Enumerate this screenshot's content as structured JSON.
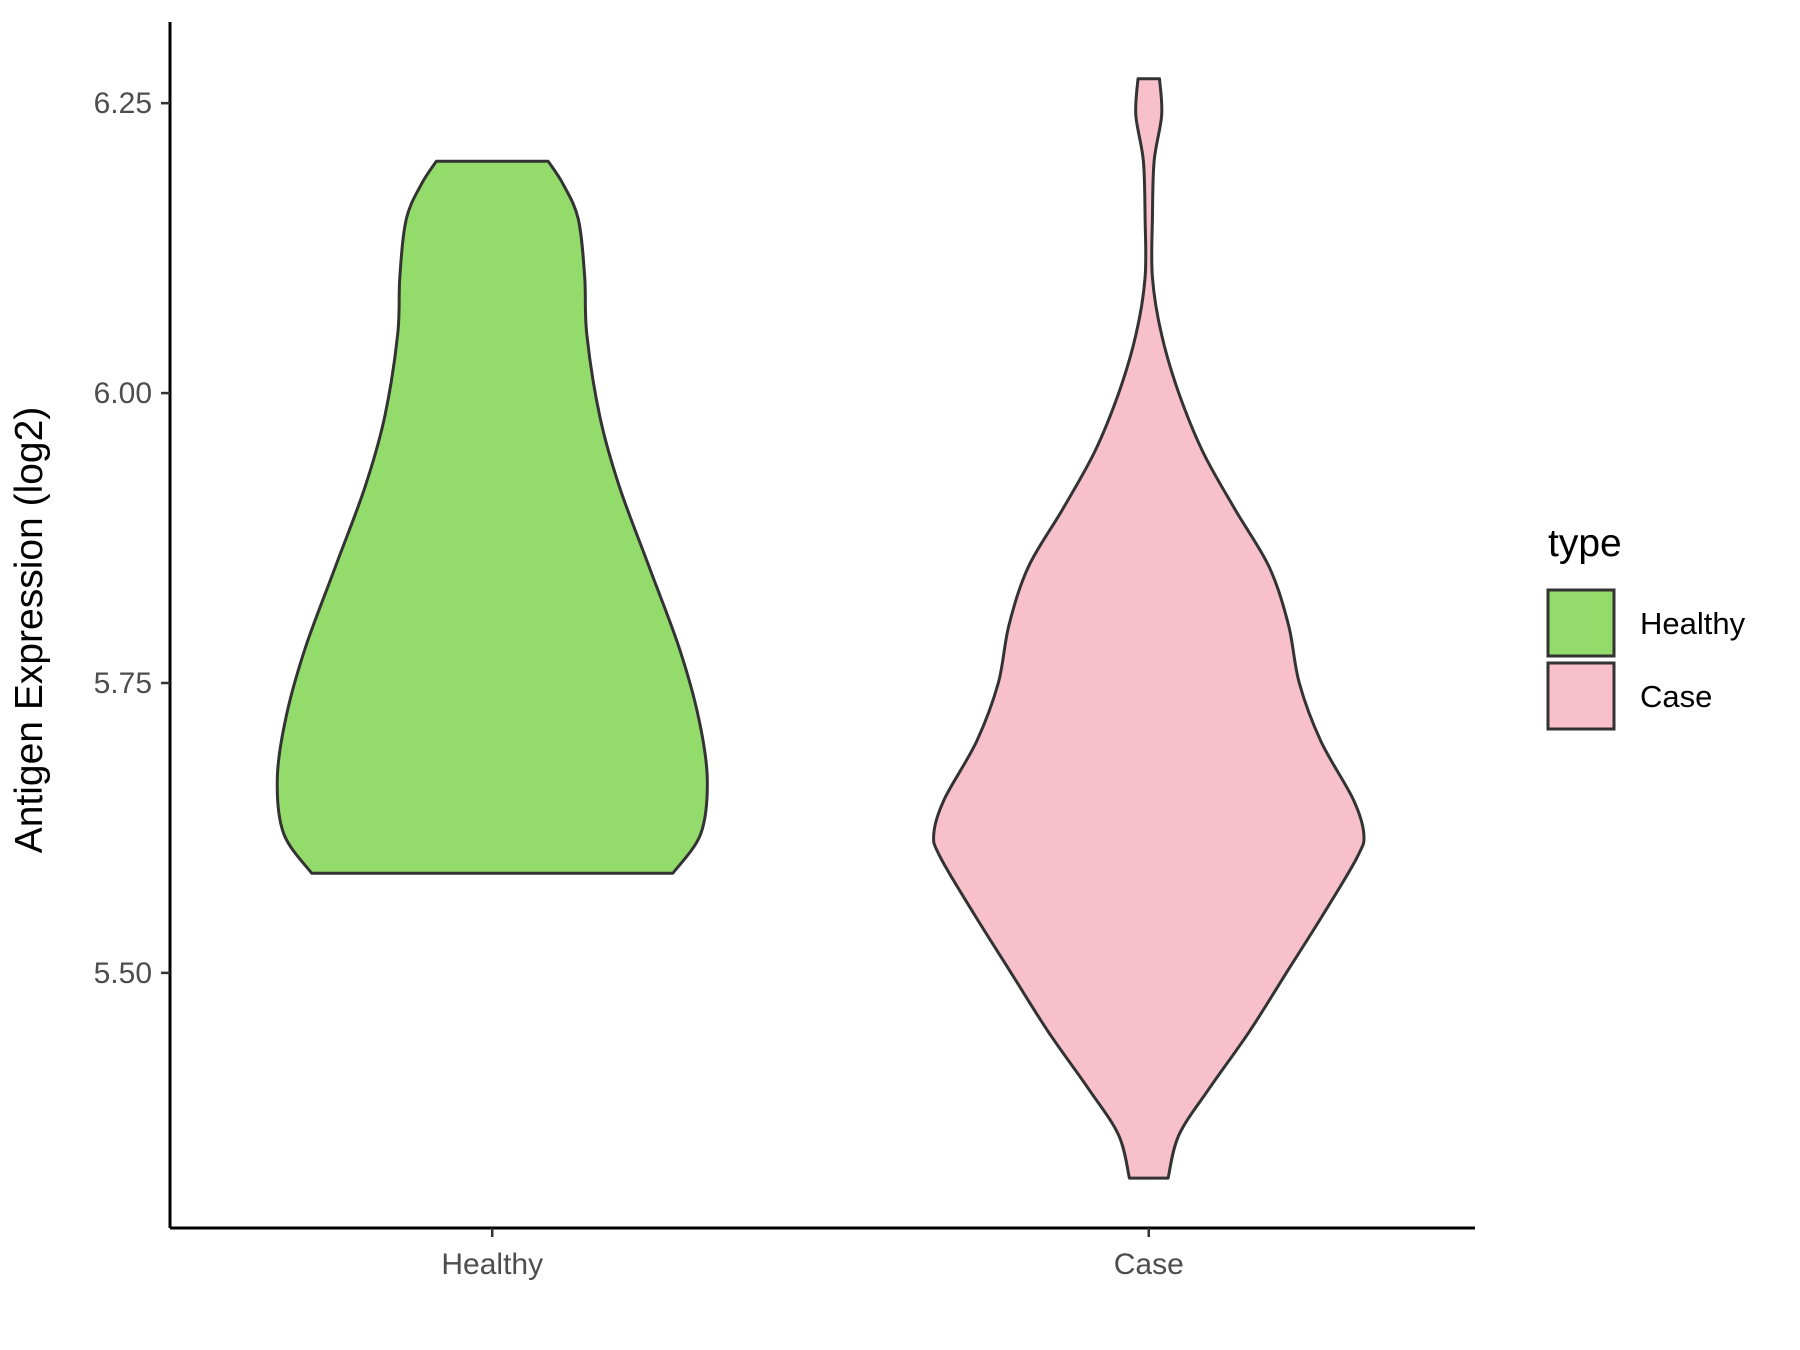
{
  "chart_data": {
    "type": "violin",
    "ylabel": "Antigen Expression (log2)",
    "xlabel": "",
    "categories": [
      "Healthy",
      "Case"
    ],
    "ylim": [
      5.28,
      6.32
    ],
    "yticks": [
      5.5,
      5.75,
      6.0,
      6.25
    ],
    "ytick_labels": [
      "5.50",
      "5.75",
      "6.00",
      "6.25"
    ],
    "grid": false,
    "legend": {
      "title": "type",
      "position": "right",
      "items": [
        {
          "label": "Healthy",
          "color": "#93DB6B"
        },
        {
          "label": "Case",
          "color": "#F8C0CB"
        }
      ]
    },
    "series": [
      {
        "category": "Healthy",
        "color": "#93DB6B",
        "min": 5.586,
        "max": 6.2,
        "profile": [
          [
            5.586,
            0.84
          ],
          [
            5.62,
            0.97
          ],
          [
            5.667,
            1.0
          ],
          [
            5.72,
            0.96
          ],
          [
            5.78,
            0.87
          ],
          [
            5.85,
            0.73
          ],
          [
            5.92,
            0.59
          ],
          [
            5.98,
            0.5
          ],
          [
            6.05,
            0.44
          ],
          [
            6.1,
            0.43
          ],
          [
            6.15,
            0.4
          ],
          [
            6.18,
            0.33
          ],
          [
            6.2,
            0.26
          ]
        ]
      },
      {
        "category": "Case",
        "color": "#F8C0CB",
        "min": 5.323,
        "max": 6.271,
        "profile": [
          [
            5.323,
            0.09
          ],
          [
            5.36,
            0.14
          ],
          [
            5.4,
            0.28
          ],
          [
            5.45,
            0.47
          ],
          [
            5.5,
            0.64
          ],
          [
            5.55,
            0.81
          ],
          [
            5.6,
            0.97
          ],
          [
            5.62,
            1.0
          ],
          [
            5.65,
            0.95
          ],
          [
            5.7,
            0.8
          ],
          [
            5.75,
            0.7
          ],
          [
            5.8,
            0.65
          ],
          [
            5.85,
            0.56
          ],
          [
            5.9,
            0.4
          ],
          [
            5.95,
            0.25
          ],
          [
            6.0,
            0.14
          ],
          [
            6.05,
            0.06
          ],
          [
            6.1,
            0.017
          ],
          [
            6.15,
            0.017
          ],
          [
            6.2,
            0.025
          ],
          [
            6.24,
            0.06
          ],
          [
            6.271,
            0.05
          ]
        ]
      }
    ]
  }
}
